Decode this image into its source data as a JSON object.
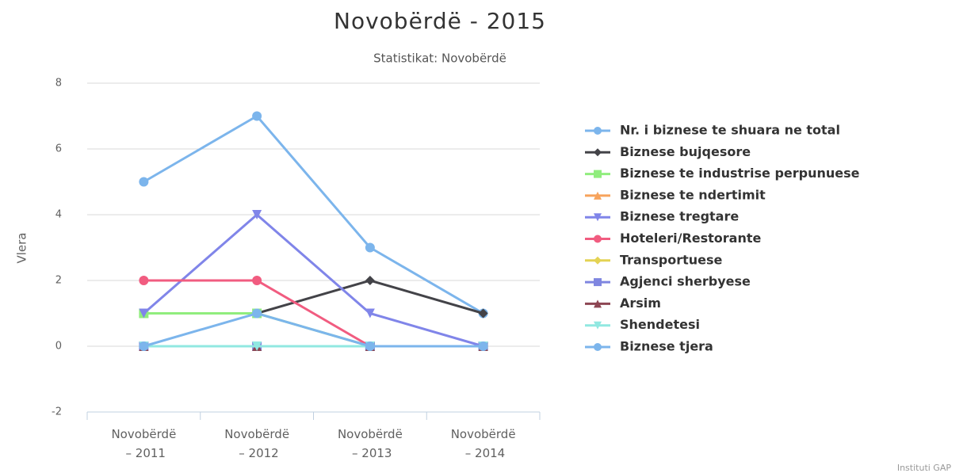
{
  "chart_data": {
    "type": "line",
    "title": "Novobërdë - 2015",
    "subtitle": "Statistikat: Novobërdë",
    "y_label": "Vlera",
    "credits": "Instituti GAP",
    "categories": [
      "Novobërdë – 2011",
      "Novobërdë – 2012",
      "Novobërdë – 2013",
      "Novobërdë – 2014"
    ],
    "ylim": [
      -2,
      8
    ],
    "yticks": [
      -2,
      0,
      2,
      4,
      6,
      8
    ],
    "grid": true,
    "series": [
      {
        "name": "Nr. i biznese te shuara ne total",
        "color": "#7cb5ec",
        "marker": "circle",
        "values": [
          5,
          7,
          3,
          1
        ]
      },
      {
        "name": "Biznese bujqesore",
        "color": "#434348",
        "marker": "diamond",
        "values": [
          1,
          1,
          2,
          1
        ]
      },
      {
        "name": "Biznese te industrise perpunuese",
        "color": "#90ed7d",
        "marker": "square",
        "values": [
          1,
          1,
          0,
          0
        ]
      },
      {
        "name": "Biznese te ndertimit",
        "color": "#f7a35c",
        "marker": "triangle",
        "values": [
          0,
          0,
          0,
          0
        ]
      },
      {
        "name": "Biznese tregtare",
        "color": "#8085e9",
        "marker": "triangle-down",
        "values": [
          1,
          4,
          1,
          0
        ]
      },
      {
        "name": "Hoteleri/Restorante",
        "color": "#f15c80",
        "marker": "circle",
        "values": [
          2,
          2,
          0,
          0
        ]
      },
      {
        "name": "Transportuese",
        "color": "#e4d354",
        "marker": "diamond",
        "values": [
          0,
          0,
          0,
          0
        ]
      },
      {
        "name": "Agjenci sherbyese",
        "color": "#7f86e0",
        "marker": "square",
        "values": [
          0,
          0,
          0,
          0
        ]
      },
      {
        "name": "Arsim",
        "color": "#8d4653",
        "marker": "triangle",
        "values": [
          0,
          0,
          0,
          0
        ]
      },
      {
        "name": "Shendetesi",
        "color": "#91e8e1",
        "marker": "triangle-down",
        "values": [
          0,
          0,
          0,
          0
        ]
      },
      {
        "name": "Biznese tjera",
        "color": "#7cb5ec",
        "marker": "circle",
        "values": [
          0,
          1,
          0,
          0
        ]
      }
    ]
  }
}
